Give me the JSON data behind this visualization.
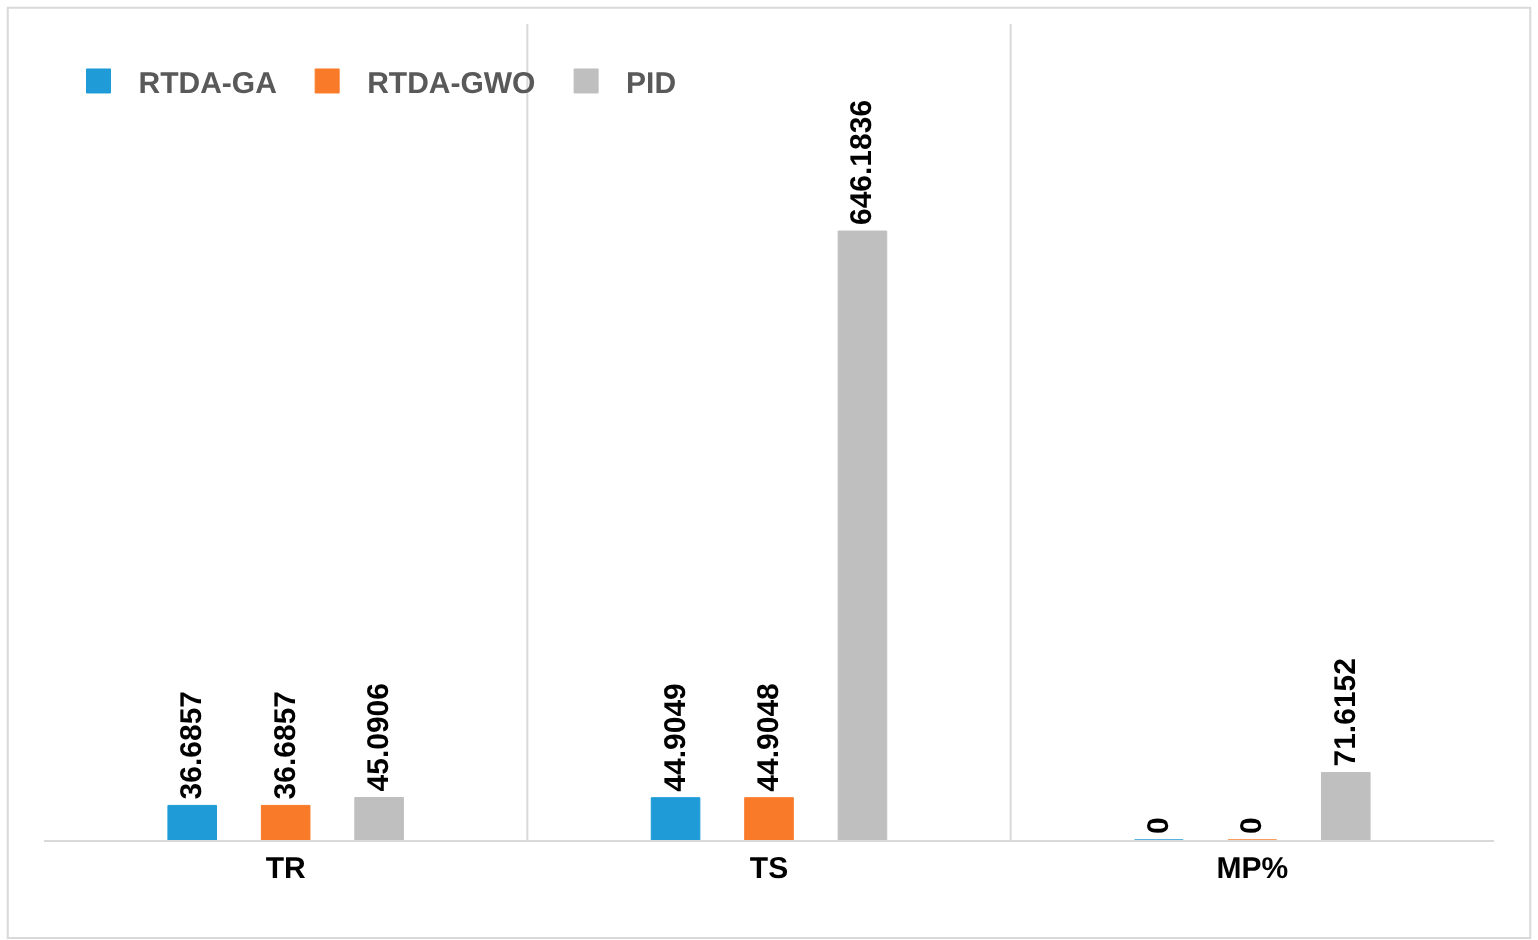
{
  "chart_data": {
    "type": "bar",
    "categories": [
      "TR",
      "TS",
      "MP%"
    ],
    "series": [
      {
        "name": "RTDA-GA",
        "color": "#1f9bd7",
        "values": [
          36.6857,
          44.9049,
          0
        ]
      },
      {
        "name": "RTDA-GWO",
        "color": "#f97b29",
        "values": [
          36.6857,
          44.9048,
          0
        ]
      },
      {
        "name": "PID",
        "color": "#bfbfbf",
        "values": [
          45.0906,
          646.1836,
          71.6152
        ]
      }
    ],
    "data_labels": true,
    "grid": "x",
    "legend": "top left",
    "tick_labels": "x"
  }
}
